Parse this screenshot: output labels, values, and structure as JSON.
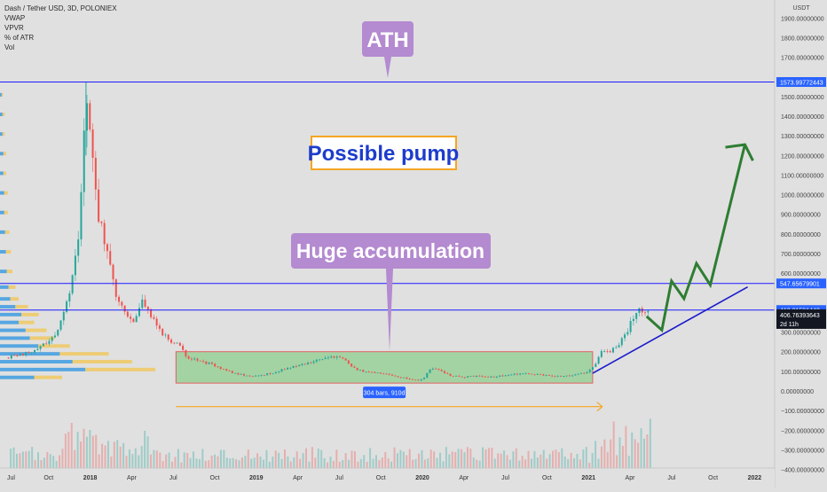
{
  "header": {
    "symbol_line": "Dash / Tether USD, 3D, POLONIEX",
    "indicators": [
      "VWAP",
      "VPVR",
      "% of ATR",
      "Vol"
    ]
  },
  "colors": {
    "background": "#e0e0e0",
    "up_candle": "#26a69a",
    "down_candle": "#ef5350",
    "horizontal_line": "#1a1aff",
    "callout_purple": "#b48ad0",
    "pump_border": "#f5a623",
    "pump_text": "#1c3ccc",
    "accum_fill": "#8fcf8f",
    "accum_border": "#e06060",
    "arrow_orange": "#f5a623",
    "projection_green": "#2e7d32",
    "trendline_blue": "#1a1acc",
    "badge_blue": "#2962ff",
    "badge_black": "#131722"
  },
  "annotations": {
    "ath_label": "ATH",
    "pump_label": "Possible pump",
    "accumulation_label": "Huge accumulation",
    "range_badge": "304 bars, 910d"
  },
  "chart_data": {
    "type": "candlestick",
    "title": "Dash / Tether USD, 3D, POLONIEX",
    "y_unit": "USDT",
    "ylim": [
      -400,
      2000
    ],
    "y_ticks": [
      {
        "value": 1900,
        "label": "1900.00000000"
      },
      {
        "value": 1800,
        "label": "1800.00000000"
      },
      {
        "value": 1700,
        "label": "1700.00000000"
      },
      {
        "value": 1500,
        "label": "1500.00000000"
      },
      {
        "value": 1400,
        "label": "1400.00000000"
      },
      {
        "value": 1300,
        "label": "1300.00000000"
      },
      {
        "value": 1200,
        "label": "1200.00000000"
      },
      {
        "value": 1100,
        "label": "1100.00000000"
      },
      {
        "value": 1000,
        "label": "1000.00000000"
      },
      {
        "value": 900,
        "label": "900.00000000"
      },
      {
        "value": 800,
        "label": "800.00000000"
      },
      {
        "value": 700,
        "label": "700.00000000"
      },
      {
        "value": 600,
        "label": "600.00000000"
      },
      {
        "value": 300,
        "label": "300.00000000"
      },
      {
        "value": 200,
        "label": "200.00000000"
      },
      {
        "value": 100,
        "label": "100.00000000"
      },
      {
        "value": 0,
        "label": "0.00000000"
      },
      {
        "value": -100,
        "label": "−100.00000000"
      },
      {
        "value": -200,
        "label": "−200.00000000"
      },
      {
        "value": -300,
        "label": "−300.00000000"
      },
      {
        "value": -400,
        "label": "−400.00000000"
      }
    ],
    "x_ticks": [
      {
        "t": 0,
        "label": "Jul",
        "bold": false
      },
      {
        "t": 3,
        "label": "Oct",
        "bold": false
      },
      {
        "t": 6,
        "label": "2018",
        "bold": true
      },
      {
        "t": 9,
        "label": "Apr",
        "bold": false
      },
      {
        "t": 12,
        "label": "Jul",
        "bold": false
      },
      {
        "t": 15,
        "label": "Oct",
        "bold": false
      },
      {
        "t": 18,
        "label": "2019",
        "bold": true
      },
      {
        "t": 21,
        "label": "Apr",
        "bold": false
      },
      {
        "t": 24,
        "label": "Jul",
        "bold": false
      },
      {
        "t": 27,
        "label": "Oct",
        "bold": false
      },
      {
        "t": 30,
        "label": "2020",
        "bold": true
      },
      {
        "t": 33,
        "label": "Apr",
        "bold": false
      },
      {
        "t": 36,
        "label": "Jul",
        "bold": false
      },
      {
        "t": 39,
        "label": "Oct",
        "bold": false
      },
      {
        "t": 42,
        "label": "2021",
        "bold": true
      },
      {
        "t": 45,
        "label": "Apr",
        "bold": false
      },
      {
        "t": 48,
        "label": "Jul",
        "bold": false
      },
      {
        "t": 51,
        "label": "Oct",
        "bold": false
      },
      {
        "t": 54,
        "label": "2022",
        "bold": true
      }
    ],
    "price_path": [
      [
        0.0,
        170
      ],
      [
        2.0,
        200
      ],
      [
        3.5,
        290
      ],
      [
        4.6,
        500
      ],
      [
        5.3,
        900
      ],
      [
        5.7,
        1573.997
      ],
      [
        6.2,
        1150
      ],
      [
        6.6,
        900
      ],
      [
        7.2,
        700
      ],
      [
        7.8,
        500
      ],
      [
        8.4,
        420
      ],
      [
        9.2,
        350
      ],
      [
        9.8,
        470
      ],
      [
        10.4,
        380
      ],
      [
        11.0,
        310
      ],
      [
        11.6,
        270
      ],
      [
        12.4,
        230
      ],
      [
        13.0,
        175
      ],
      [
        13.8,
        150
      ],
      [
        14.6,
        140
      ],
      [
        15.5,
        110
      ],
      [
        16.5,
        90
      ],
      [
        17.5,
        75
      ],
      [
        18.5,
        80
      ],
      [
        19.5,
        100
      ],
      [
        20.5,
        120
      ],
      [
        21.5,
        140
      ],
      [
        22.5,
        155
      ],
      [
        23.5,
        175
      ],
      [
        24.3,
        160
      ],
      [
        25.0,
        115
      ],
      [
        26.0,
        95
      ],
      [
        27.0,
        90
      ],
      [
        28.0,
        75
      ],
      [
        29.0,
        60
      ],
      [
        30.0,
        55
      ],
      [
        30.6,
        120
      ],
      [
        31.2,
        105
      ],
      [
        32.0,
        80
      ],
      [
        33.0,
        72
      ],
      [
        34.0,
        75
      ],
      [
        35.0,
        70
      ],
      [
        36.0,
        80
      ],
      [
        37.0,
        88
      ],
      [
        38.0,
        85
      ],
      [
        39.0,
        78
      ],
      [
        40.0,
        72
      ],
      [
        41.0,
        80
      ],
      [
        42.0,
        100
      ],
      [
        42.5,
        130
      ],
      [
        43.0,
        220
      ],
      [
        43.5,
        190
      ],
      [
        44.2,
        240
      ],
      [
        44.8,
        300
      ],
      [
        45.3,
        390
      ],
      [
        45.6,
        430
      ],
      [
        46.0,
        380
      ],
      [
        46.5,
        406.76
      ]
    ],
    "volume_profile": [
      {
        "price": 60,
        "volume": 0.4
      },
      {
        "price": 100,
        "volume": 1.0
      },
      {
        "price": 140,
        "volume": 0.85
      },
      {
        "price": 180,
        "volume": 0.7
      },
      {
        "price": 220,
        "volume": 0.45
      },
      {
        "price": 260,
        "volume": 0.35
      },
      {
        "price": 300,
        "volume": 0.3
      },
      {
        "price": 340,
        "volume": 0.22
      },
      {
        "price": 380,
        "volume": 0.25
      },
      {
        "price": 420,
        "volume": 0.18
      },
      {
        "price": 460,
        "volume": 0.12
      },
      {
        "price": 520,
        "volume": 0.1
      },
      {
        "price": 600,
        "volume": 0.08
      },
      {
        "price": 700,
        "volume": 0.07
      },
      {
        "price": 800,
        "volume": 0.06
      },
      {
        "price": 900,
        "volume": 0.05
      },
      {
        "price": 1000,
        "volume": 0.05
      },
      {
        "price": 1100,
        "volume": 0.04
      },
      {
        "price": 1200,
        "volume": 0.04
      },
      {
        "price": 1300,
        "volume": 0.03
      },
      {
        "price": 1400,
        "volume": 0.03
      },
      {
        "price": 1500,
        "volume": 0.02
      }
    ],
    "horizontal_levels": [
      {
        "value": 1573.99772443,
        "label": "1573.99772443"
      },
      {
        "value": 547.65679901,
        "label": "547.65679901"
      },
      {
        "value": 412.21591442,
        "label": "412.21591442"
      }
    ],
    "current_price": {
      "value": 406.76393643,
      "label": "406.76393643",
      "countdown": "2d 11h"
    },
    "accumulation_zone": {
      "t_start": 12.2,
      "t_end": 42.3,
      "low": 40,
      "high": 200
    },
    "range_arrow": {
      "t_start": 12.2,
      "t_end": 43.0,
      "price": -80
    },
    "support_trendline": [
      [
        42.3,
        90
      ],
      [
        53.5,
        530
      ]
    ],
    "projection_path": [
      [
        46.2,
        380
      ],
      [
        47.3,
        310
      ],
      [
        48.0,
        560
      ],
      [
        48.9,
        470
      ],
      [
        49.8,
        650
      ],
      [
        50.8,
        540
      ],
      [
        53.3,
        1255
      ]
    ],
    "legend_placement": "top-left",
    "grid": false
  }
}
